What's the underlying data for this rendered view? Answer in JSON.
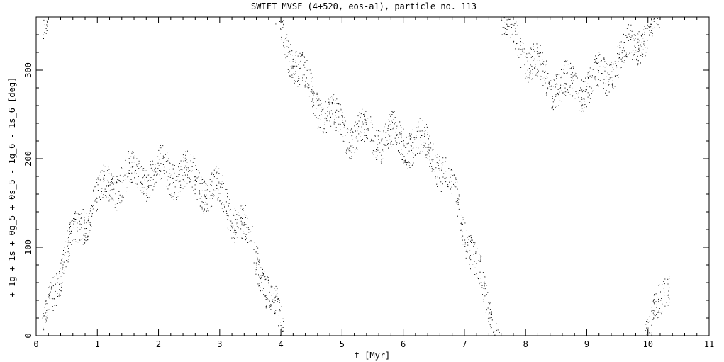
{
  "chart_data": {
    "type": "scatter",
    "title": "SWIFT_MVSF (4+520, eos-a1), particle no. 113",
    "xlabel": "t [Myr]",
    "ylabel": "+ 1g + 1s + 0g_5 + 0s_5 - 1g_6 - 1s_6 [deg]",
    "xlim": [
      0,
      11
    ],
    "ylim": [
      0,
      360
    ],
    "x_ticks": [
      "0",
      "1",
      "2",
      "3",
      "4",
      "5",
      "6",
      "7",
      "8",
      "9",
      "10",
      "11"
    ],
    "y_ticks": [
      "0",
      "100",
      "200",
      "300"
    ],
    "grid": false,
    "legend": "none",
    "marker_color": "#000000",
    "series": [
      {
        "segments": [
          {
            "t": [
              0.1,
              0.15,
              0.2
            ],
            "angle": [
              325,
              345,
              360
            ]
          },
          {
            "t": [
              0.1,
              0.2,
              0.3,
              0.4,
              0.5,
              0.6,
              0.7,
              0.8,
              0.9,
              1.0,
              1.2,
              1.4,
              1.6,
              1.8,
              2.0,
              2.2,
              2.4,
              2.6,
              2.8,
              3.0,
              3.2,
              3.4,
              3.6,
              3.8,
              3.95,
              4.05
            ],
            "angle": [
              10,
              35,
              58,
              78,
              95,
              110,
              123,
              135,
              147,
              157,
              170,
              177,
              181,
              183,
              185,
              186,
              183,
              176,
              168,
              158,
              140,
              120,
              90,
              50,
              20,
              0
            ]
          },
          {
            "t": [
              3.9,
              4.0,
              4.1,
              4.3,
              4.5,
              4.7,
              4.9,
              5.1,
              5.3,
              5.5,
              5.7,
              5.9,
              6.1,
              6.3,
              6.5,
              6.7,
              6.9,
              7.1,
              7.3,
              7.45,
              7.6
            ],
            "angle": [
              360,
              345,
              330,
              300,
              272,
              252,
              240,
              232,
              227,
              226,
              223,
              222,
              221,
              215,
              205,
              180,
              145,
              100,
              50,
              15,
              0
            ]
          },
          {
            "t": [
              7.6,
              7.8,
              8.0,
              8.2,
              8.4,
              8.6,
              8.8,
              9.0,
              9.2,
              9.4,
              9.6,
              9.8,
              10.0,
              10.2
            ],
            "angle": [
              360,
              340,
              318,
              300,
              288,
              282,
              280,
              282,
              290,
              302,
              318,
              332,
              345,
              360
            ]
          },
          {
            "t": [
              9.95,
              10.05,
              10.15,
              10.25,
              10.35
            ],
            "angle": [
              0,
              10,
              25,
              45,
              70
            ]
          }
        ]
      }
    ]
  }
}
